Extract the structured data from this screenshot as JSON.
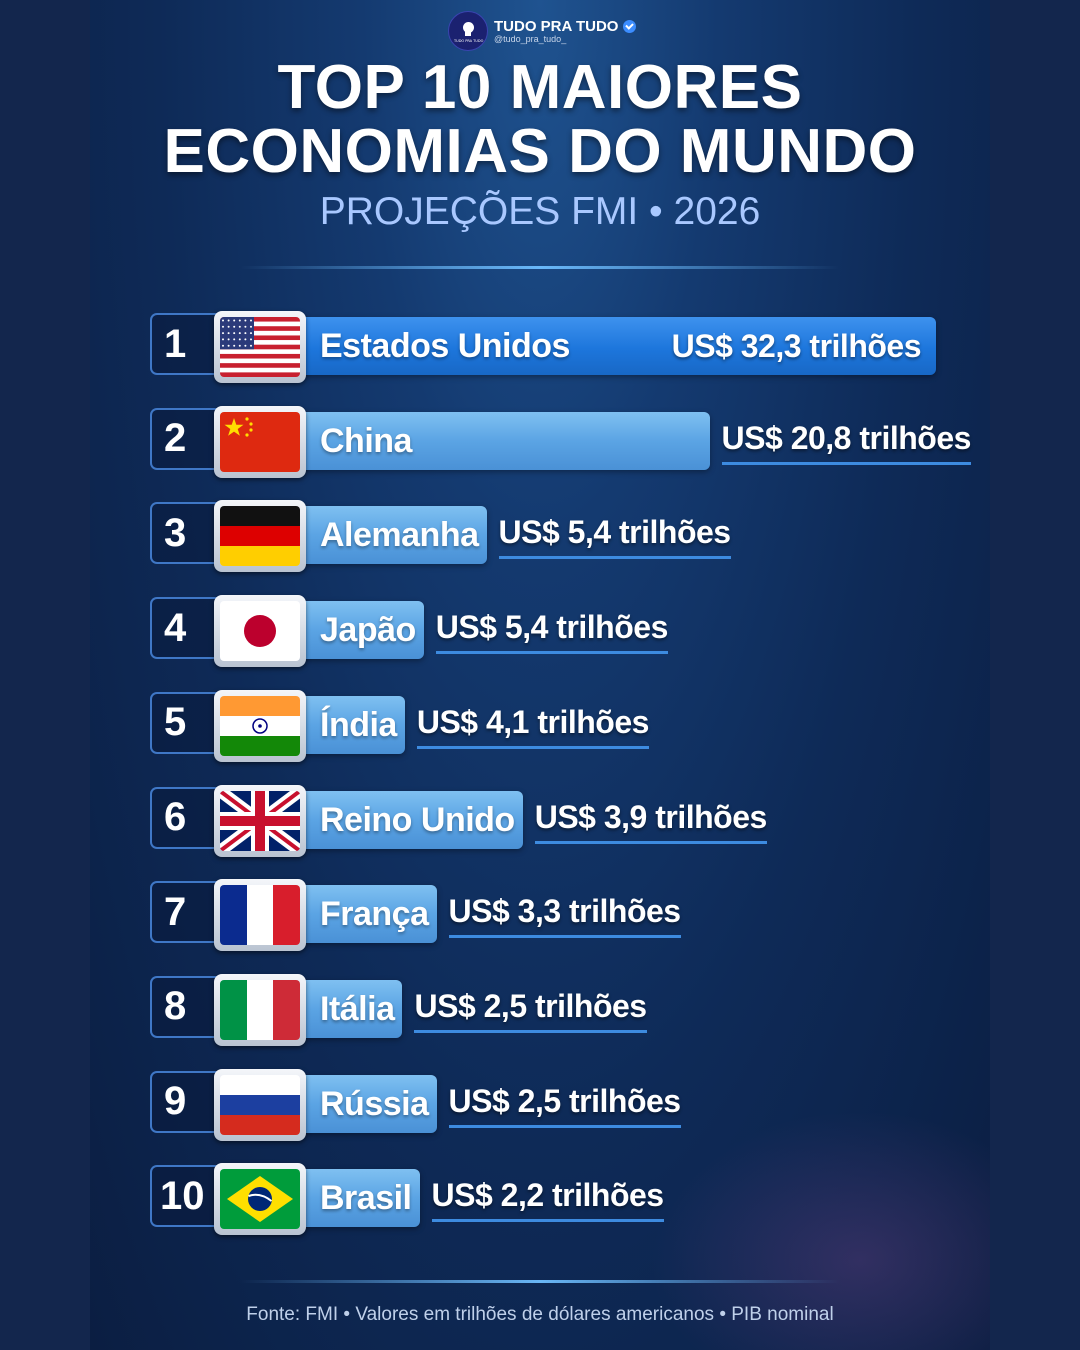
{
  "profile": {
    "name": "TUDO PRA TUDO",
    "handle": "@tudo_pra_tudo_",
    "logo_text": "TUDO PRA TUDO"
  },
  "header": {
    "title_line1": "TOP 10 MAIORES",
    "title_line2": "ECONOMIAS DO MUNDO",
    "subtitle": "PROJEÇÕES FMI • 2026"
  },
  "colors": {
    "background": "#0e2a57",
    "bar_first": "#1d76dc",
    "bar": "#5ba4e4",
    "subtitle": "#a9c8ff"
  },
  "chart_data": {
    "type": "bar",
    "orientation": "horizontal",
    "unit_prefix": "US$",
    "unit_suffix": "trilhões",
    "categories": [
      "Estados Unidos",
      "China",
      "Alemanha",
      "Japão",
      "Índia",
      "Reino Unido",
      "França",
      "Itália",
      "Rússia",
      "Brasil"
    ],
    "ranks": [
      "1",
      "2",
      "3",
      "4",
      "5",
      "6",
      "7",
      "8",
      "9",
      "10"
    ],
    "values": [
      32.3,
      20.8,
      5.4,
      5.4,
      4.1,
      3.9,
      3.3,
      2.5,
      2.5,
      2.2
    ],
    "value_labels": [
      "US$ 32,3 trilhões",
      "US$ 20,8 trilhões",
      "US$ 5,4 trilhões",
      "US$ 5,4 trilhões",
      "US$ 4,1 trilhões",
      "US$ 3,9 trilhões",
      "US$ 3,3 trilhões",
      "US$ 2,5 trilhões",
      "US$ 2,5 trilhões",
      "US$ 2,2 trilhões"
    ],
    "flags": [
      "usa-flag-icon",
      "china-flag-icon",
      "germany-flag-icon",
      "japan-flag-icon",
      "india-flag-icon",
      "uk-flag-icon",
      "france-flag-icon",
      "italy-flag-icon",
      "russia-flag-icon",
      "brazil-flag-icon"
    ]
  },
  "footer": {
    "source": "Fonte: FMI • Valores em trilhões de dólares americanos • PIB nominal"
  }
}
